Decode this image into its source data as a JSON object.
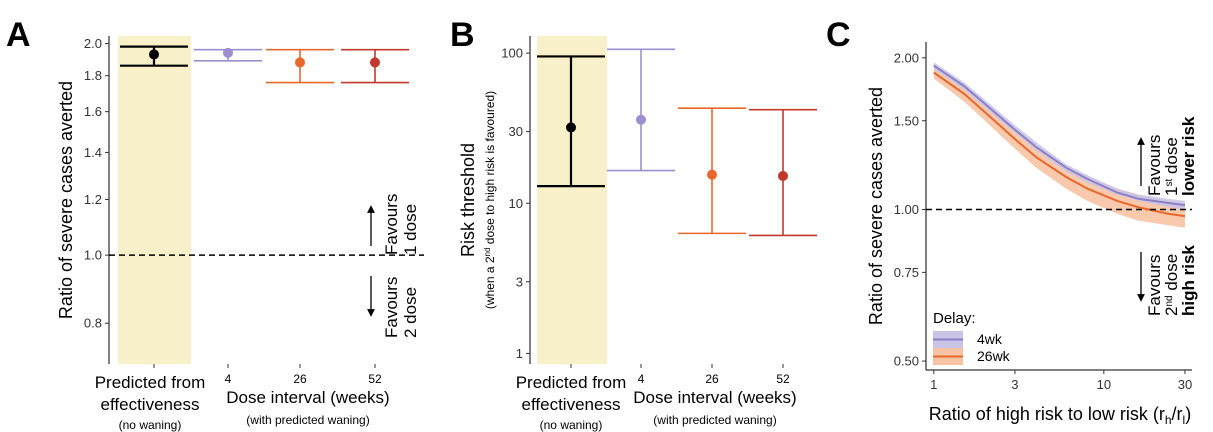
{
  "figure_letters": [
    "A",
    "B",
    "C"
  ],
  "colors": {
    "highlight": "#f8f0c8",
    "predicted": "#000000",
    "w4": "#9b8fd0",
    "w26": "#e8672a",
    "w52": "#c0392b",
    "c_4wk_line": "#8a80c8",
    "c_4wk_band": "#c9c3e6",
    "c_26wk_line": "#e8672a",
    "c_26wk_band": "#f7c3a3",
    "lower_risk": "#e28bbd",
    "high_risk": "#e0153b"
  },
  "chart_data": [
    {
      "id": "A",
      "type": "scatter",
      "subtype": "pointrange",
      "ylabel": "Ratio of severe cases averted",
      "yscale": "log",
      "ylim": [
        0.7,
        2.05
      ],
      "yticks": [
        0.8,
        1.0,
        1.2,
        1.4,
        1.6,
        1.8,
        2.0
      ],
      "ytick_labels": [
        "0.8",
        "1.0",
        "1.2",
        "1.4",
        "1.6",
        "1.8",
        "2.0"
      ],
      "reference_line": 1.0,
      "categories": [
        {
          "key": "pred",
          "label": "",
          "value": 1.93,
          "low": 1.86,
          "high": 1.98,
          "color_key": "predicted"
        },
        {
          "key": "w4",
          "label": "4",
          "value": 1.94,
          "low": 1.89,
          "high": 1.96,
          "color_key": "w4"
        },
        {
          "key": "w26",
          "label": "26",
          "value": 1.88,
          "low": 1.76,
          "high": 1.96,
          "color_key": "w26"
        },
        {
          "key": "w52",
          "label": "52",
          "value": 1.88,
          "low": 1.76,
          "high": 1.96,
          "color_key": "w52"
        }
      ],
      "group_labels": {
        "predicted_line1": "Predicted from",
        "predicted_line2": "effectiveness",
        "predicted_line3": "(no waning)",
        "interval_line1": "Dose interval (weeks)",
        "interval_line2": "(with predicted waning)"
      },
      "annotations": {
        "up_line1": "Favours",
        "up_line2": "1 dose",
        "down_line1": "Favours",
        "down_line2": "2 dose"
      }
    },
    {
      "id": "B",
      "type": "scatter",
      "subtype": "pointrange",
      "ylabel": "Risk threshold",
      "ylabel_sub_pre": "(when a 2",
      "ylabel_sub_sup": "nd",
      "ylabel_sub_post": " dose to high risk is favoured)",
      "yscale": "log",
      "ylim": [
        0.85,
        130
      ],
      "yticks": [
        1,
        3,
        10,
        30,
        100
      ],
      "ytick_labels": [
        "1",
        "3",
        "10",
        "30",
        "100"
      ],
      "categories": [
        {
          "key": "pred",
          "label": "",
          "value": 32,
          "low": 13,
          "high": 95,
          "color_key": "predicted"
        },
        {
          "key": "w4",
          "label": "4",
          "value": 36,
          "low": 16.5,
          "high": 106,
          "color_key": "w4"
        },
        {
          "key": "w26",
          "label": "26",
          "value": 15.5,
          "low": 6.3,
          "high": 43,
          "color_key": "w26"
        },
        {
          "key": "w52",
          "label": "52",
          "value": 15.2,
          "low": 6.1,
          "high": 42,
          "color_key": "w52"
        }
      ],
      "group_labels": {
        "predicted_line1": "Predicted from",
        "predicted_line2": "effectiveness",
        "predicted_line3": "(no waning)",
        "interval_line1": "Dose interval (weeks)",
        "interval_line2": "(with predicted waning)"
      }
    },
    {
      "id": "C",
      "type": "line",
      "subtype": "line-with-ribbon",
      "xlabel_main": "Ratio of high risk to low risk (r",
      "xlabel_sub_h": "h",
      "xlabel_slash": "/r",
      "xlabel_sub_l": "l",
      "xlabel_close": ")",
      "ylabel": "Ratio of severe cases averted",
      "xscale": "log",
      "yscale": "log",
      "xlim": [
        0.9,
        33
      ],
      "ylim": [
        0.48,
        2.15
      ],
      "xticks": [
        1,
        3,
        10,
        30
      ],
      "xtick_labels": [
        "1",
        "3",
        "10",
        "30"
      ],
      "yticks": [
        0.5,
        0.75,
        1.0,
        1.5,
        2.0
      ],
      "ytick_labels": [
        "0.50",
        "0.75",
        "1.00",
        "1.50",
        "2.00"
      ],
      "reference_line": 1.0,
      "x": [
        1,
        1.5,
        2,
        3,
        4,
        6,
        8,
        12,
        16,
        24,
        30
      ],
      "series": [
        {
          "name": "4wk",
          "color_key": "c_4wk_line",
          "band_color_key": "c_4wk_band",
          "values": [
            1.93,
            1.76,
            1.62,
            1.44,
            1.33,
            1.21,
            1.15,
            1.08,
            1.05,
            1.03,
            1.02
          ],
          "lower": [
            1.9,
            1.73,
            1.59,
            1.42,
            1.31,
            1.19,
            1.13,
            1.07,
            1.04,
            1.01,
            1.0
          ],
          "upper": [
            1.96,
            1.79,
            1.65,
            1.47,
            1.36,
            1.23,
            1.17,
            1.1,
            1.07,
            1.05,
            1.04
          ]
        },
        {
          "name": "26wk",
          "color_key": "c_26wk_line",
          "band_color_key": "c_26wk_band",
          "values": [
            1.87,
            1.7,
            1.56,
            1.38,
            1.27,
            1.16,
            1.1,
            1.04,
            1.01,
            0.98,
            0.97
          ],
          "lower": [
            1.82,
            1.64,
            1.5,
            1.32,
            1.21,
            1.1,
            1.04,
            0.98,
            0.95,
            0.93,
            0.92
          ],
          "upper": [
            1.93,
            1.77,
            1.63,
            1.45,
            1.34,
            1.22,
            1.16,
            1.1,
            1.07,
            1.04,
            1.03
          ]
        }
      ],
      "legend": {
        "title": "Delay:",
        "placement": "bottom-left"
      },
      "annotations": {
        "up_line1": "Favours",
        "up_line2_pre": "1",
        "up_line2_sup": "st",
        "up_line2_post": " dose",
        "up_line3": "lower risk",
        "down_line1": "Favours",
        "down_line2_pre": "2",
        "down_line2_sup": "nd",
        "down_line2_post": " dose",
        "down_line3": "high risk"
      }
    }
  ]
}
